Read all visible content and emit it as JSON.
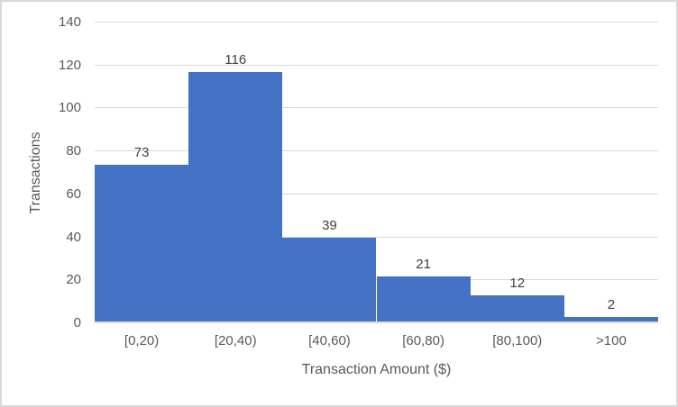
{
  "chart_data": {
    "type": "bar",
    "subtype": "histogram",
    "title": "",
    "categories": [
      "[0,20)",
      "[20,40)",
      "[40,60)",
      "[60,80)",
      "[80,100)",
      ">100"
    ],
    "values": [
      73,
      116,
      39,
      21,
      12,
      2
    ],
    "xlabel": "Transaction Amount ($)",
    "ylabel": "Transactions",
    "ylim": [
      0,
      140
    ],
    "yticks": [
      0,
      20,
      40,
      60,
      80,
      100,
      120,
      140
    ],
    "grid": true,
    "legend": "none",
    "data_labels": true,
    "gap_width_percent": 0
  },
  "colors": {
    "bar": "#4472C4",
    "gridline": "#D9D9D9",
    "chart_border": "#D9D9D9",
    "tick_text": "#595959",
    "axis_title_text": "#595959",
    "data_label_text": "#404040",
    "background": "#FFFFFF"
  }
}
